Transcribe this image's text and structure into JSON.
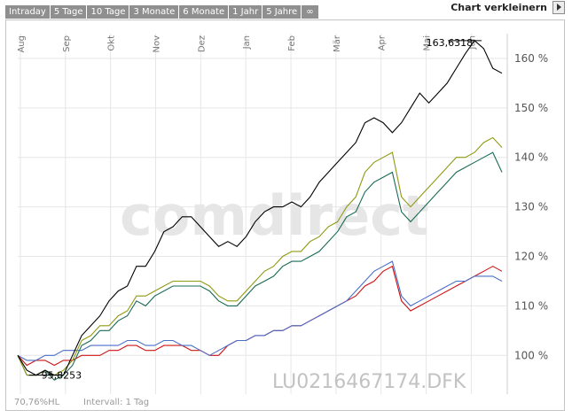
{
  "toolbar": {
    "tabs": [
      "Intraday",
      "5 Tage",
      "10 Tage",
      "3 Monate",
      "6 Monate",
      "1 Jahr",
      "5 Jahre",
      "∞"
    ],
    "shrink_label": "Chart verkleinern"
  },
  "chart_data": {
    "type": "line",
    "x_labels": [
      "Aug",
      "Sep",
      "Okt",
      "Nov",
      "Dez",
      "Jan",
      "Feb",
      "Mär",
      "Apr",
      "Mai",
      "Jun"
    ],
    "y_ticks": [
      "100 %",
      "110 %",
      "120 %",
      "130 %",
      "140 %",
      "150 %",
      "160 %"
    ],
    "ylim": [
      92,
      165
    ],
    "grid": true,
    "max_annotation": "163,6318",
    "min_annotation": "95,8253",
    "watermark": "comdirect",
    "symbol": "LU0216467174.DFK",
    "footer_left": "70,76%HL",
    "footer_interval": "Intervall: 1 Tag",
    "series": [
      {
        "color": "#000000",
        "values": [
          100,
          97,
          96,
          97,
          96,
          96,
          100,
          104,
          106,
          108,
          111,
          113,
          114,
          118,
          118,
          121,
          125,
          126,
          128,
          128,
          126,
          124,
          122,
          123,
          122,
          124,
          127,
          129,
          130,
          130,
          131,
          130,
          132,
          135,
          137,
          139,
          141,
          143,
          147,
          148,
          147,
          145,
          147,
          150,
          153,
          151,
          153,
          155,
          158,
          161,
          163.6,
          162,
          158,
          157
        ]
      },
      {
        "color": "#8f9a12",
        "values": [
          100,
          96,
          96,
          97,
          96,
          97,
          99,
          103,
          104,
          106,
          106,
          108,
          109,
          112,
          112,
          113,
          114,
          115,
          115,
          115,
          115,
          114,
          112,
          111,
          111,
          113,
          115,
          117,
          118,
          120,
          121,
          121,
          123,
          124,
          126,
          127,
          130,
          132,
          137,
          139,
          140,
          141,
          132,
          130,
          132,
          134,
          136,
          138,
          140,
          140,
          141,
          143,
          144,
          142
        ]
      },
      {
        "color": "#1a6b57",
        "values": [
          100,
          96,
          96,
          97,
          95,
          96,
          98,
          102,
          103,
          105,
          105,
          107,
          108,
          111,
          110,
          112,
          113,
          114,
          114,
          114,
          114,
          113,
          111,
          110,
          110,
          112,
          114,
          115,
          116,
          118,
          119,
          119,
          120,
          121,
          123,
          125,
          128,
          129,
          133,
          135,
          136,
          137,
          129,
          127,
          129,
          131,
          133,
          135,
          137,
          138,
          139,
          140,
          141,
          137
        ]
      },
      {
        "color": "#cc1414",
        "values": [
          100,
          98,
          99,
          99,
          98,
          99,
          99,
          100,
          100,
          100,
          101,
          101,
          102,
          102,
          101,
          101,
          102,
          102,
          102,
          101,
          101,
          100,
          100,
          102,
          103,
          103,
          104,
          104,
          105,
          105,
          106,
          106,
          107,
          108,
          109,
          110,
          111,
          112,
          114,
          115,
          117,
          118,
          111,
          109,
          110,
          111,
          112,
          113,
          114,
          115,
          116,
          117,
          118,
          117
        ]
      },
      {
        "color": "#4a6fc9",
        "values": [
          100,
          99,
          99,
          100,
          100,
          101,
          101,
          101,
          102,
          102,
          102,
          102,
          103,
          103,
          102,
          102,
          103,
          103,
          102,
          102,
          101,
          100,
          101,
          102,
          103,
          103,
          104,
          104,
          105,
          105,
          106,
          106,
          107,
          108,
          109,
          110,
          111,
          113,
          115,
          117,
          118,
          119,
          112,
          110,
          111,
          112,
          113,
          114,
          115,
          115,
          116,
          116,
          116,
          115
        ]
      }
    ]
  }
}
